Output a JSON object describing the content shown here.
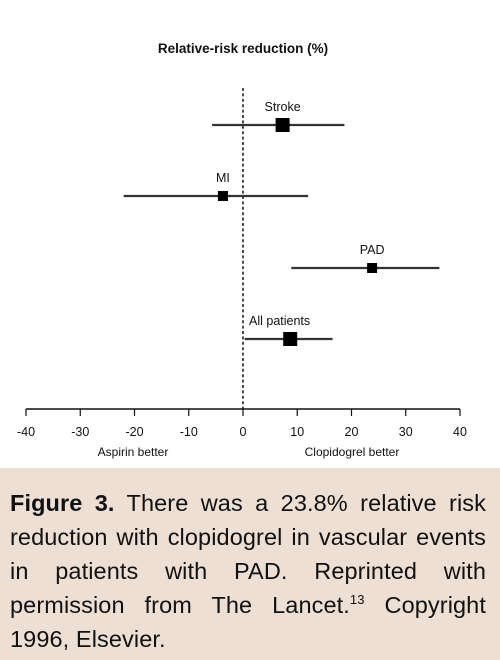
{
  "chart_data": {
    "type": "forest",
    "title": "Relative-risk reduction (%)",
    "xlim": [
      -40,
      40
    ],
    "x_ticks": [
      -40,
      -30,
      -20,
      -10,
      0,
      10,
      20,
      30,
      40
    ],
    "x_tick_labels": [
      "-40",
      "-30",
      "-20",
      "-10",
      "0",
      "10",
      "20",
      "30",
      "40"
    ],
    "left_direction_label": "Aspirin better",
    "right_direction_label": "Clopidogrel better",
    "reference_line": 0,
    "rows": [
      {
        "label": "Stroke",
        "estimate": 7.3,
        "ci_low": -5.7,
        "ci_high": 18.7,
        "marker": "large"
      },
      {
        "label": "MI",
        "estimate": -3.7,
        "ci_low": -22.0,
        "ci_high": 12.0,
        "marker": "small"
      },
      {
        "label": "PAD",
        "estimate": 23.8,
        "ci_low": 8.9,
        "ci_high": 36.2,
        "marker": "small"
      },
      {
        "label": "All patients",
        "estimate": 8.7,
        "ci_low": 0.3,
        "ci_high": 16.5,
        "marker": "large"
      }
    ]
  },
  "caption": {
    "label": "Figure 3.",
    "text": " There was a 23.8% relative risk reduction with clopidogrel in vascular events in patients with PAD. Reprinted with permission from The Lancet.",
    "superscript": "13",
    "tail": " Copyright 1996, Elsevier."
  },
  "colors": {
    "caption_background": "#eddfd4",
    "ink": "#111111"
  }
}
